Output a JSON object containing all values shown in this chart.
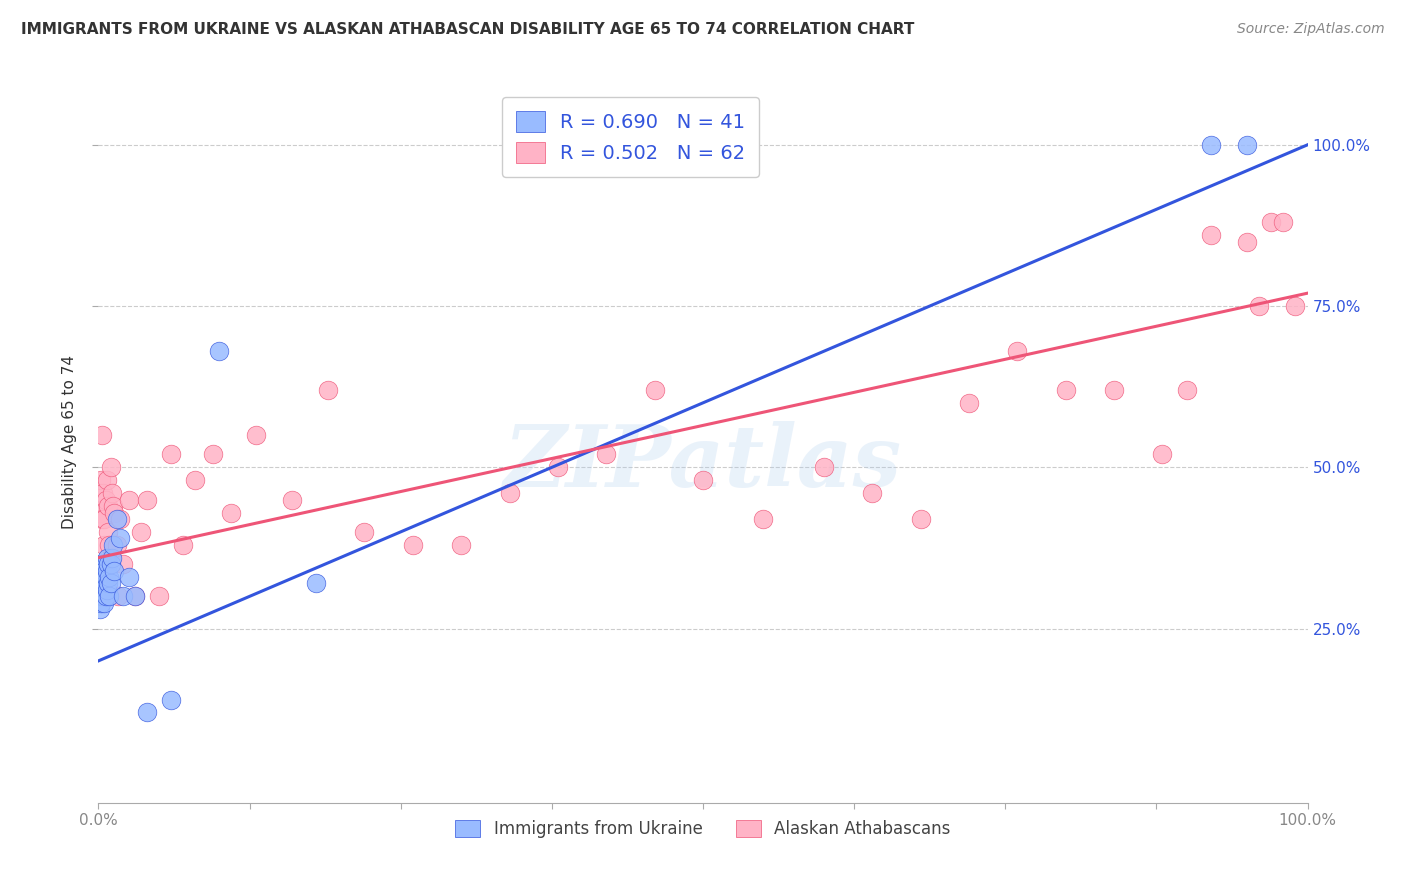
{
  "title": "IMMIGRANTS FROM UKRAINE VS ALASKAN ATHABASCAN DISABILITY AGE 65 TO 74 CORRELATION CHART",
  "source": "Source: ZipAtlas.com",
  "ylabel": "Disability Age 65 to 74",
  "ytick_vals": [
    0.25,
    0.5,
    0.75,
    1.0
  ],
  "ytick_labels": [
    "25.0%",
    "50.0%",
    "75.0%",
    "100.0%"
  ],
  "legend_blue_r": "R = 0.690",
  "legend_blue_n": "N = 41",
  "legend_pink_r": "R = 0.502",
  "legend_pink_n": "N = 62",
  "legend_blue_label": "Immigrants from Ukraine",
  "legend_pink_label": "Alaskan Athabascans",
  "blue_color": "#99BBFF",
  "pink_color": "#FFB3C6",
  "blue_line_color": "#3355DD",
  "pink_line_color": "#EE5577",
  "blue_line_x0": 0.0,
  "blue_line_y0": 0.2,
  "blue_line_x1": 1.0,
  "blue_line_y1": 1.0,
  "pink_line_x0": 0.0,
  "pink_line_y0": 0.36,
  "pink_line_x1": 1.0,
  "pink_line_y1": 0.77,
  "watermark": "ZIPatlas",
  "blue_scatter_x": [
    0.001,
    0.001,
    0.001,
    0.002,
    0.002,
    0.002,
    0.002,
    0.003,
    0.003,
    0.003,
    0.004,
    0.004,
    0.004,
    0.005,
    0.005,
    0.005,
    0.006,
    0.006,
    0.007,
    0.007,
    0.007,
    0.008,
    0.008,
    0.009,
    0.009,
    0.01,
    0.01,
    0.011,
    0.012,
    0.013,
    0.015,
    0.018,
    0.02,
    0.025,
    0.03,
    0.04,
    0.06,
    0.1,
    0.18,
    0.92,
    0.95
  ],
  "blue_scatter_y": [
    0.28,
    0.3,
    0.32,
    0.29,
    0.31,
    0.33,
    0.35,
    0.3,
    0.32,
    0.34,
    0.31,
    0.33,
    0.35,
    0.29,
    0.32,
    0.34,
    0.3,
    0.33,
    0.31,
    0.34,
    0.36,
    0.32,
    0.35,
    0.3,
    0.33,
    0.32,
    0.35,
    0.36,
    0.38,
    0.34,
    0.42,
    0.39,
    0.3,
    0.33,
    0.3,
    0.12,
    0.14,
    0.68,
    0.32,
    1.0,
    1.0
  ],
  "pink_scatter_x": [
    0.001,
    0.001,
    0.002,
    0.002,
    0.003,
    0.003,
    0.004,
    0.004,
    0.005,
    0.005,
    0.006,
    0.006,
    0.007,
    0.008,
    0.008,
    0.009,
    0.01,
    0.01,
    0.011,
    0.012,
    0.013,
    0.015,
    0.016,
    0.018,
    0.02,
    0.025,
    0.03,
    0.035,
    0.04,
    0.05,
    0.06,
    0.07,
    0.08,
    0.095,
    0.11,
    0.13,
    0.16,
    0.19,
    0.22,
    0.26,
    0.3,
    0.34,
    0.38,
    0.42,
    0.46,
    0.5,
    0.55,
    0.6,
    0.64,
    0.68,
    0.72,
    0.76,
    0.8,
    0.84,
    0.88,
    0.9,
    0.92,
    0.95,
    0.96,
    0.97,
    0.98,
    0.99
  ],
  "pink_scatter_y": [
    0.43,
    0.46,
    0.3,
    0.48,
    0.42,
    0.55,
    0.3,
    0.46,
    0.38,
    0.42,
    0.32,
    0.45,
    0.48,
    0.4,
    0.44,
    0.38,
    0.5,
    0.36,
    0.46,
    0.44,
    0.43,
    0.38,
    0.3,
    0.42,
    0.35,
    0.45,
    0.3,
    0.4,
    0.45,
    0.3,
    0.52,
    0.38,
    0.48,
    0.52,
    0.43,
    0.55,
    0.45,
    0.62,
    0.4,
    0.38,
    0.38,
    0.46,
    0.5,
    0.52,
    0.62,
    0.48,
    0.42,
    0.5,
    0.46,
    0.42,
    0.6,
    0.68,
    0.62,
    0.62,
    0.52,
    0.62,
    0.86,
    0.85,
    0.75,
    0.88,
    0.88,
    0.75
  ],
  "xlim": [
    0.0,
    1.0
  ],
  "ylim": [
    -0.02,
    1.1
  ],
  "background_color": "#FFFFFF",
  "grid_color": "#CCCCCC",
  "text_color": "#333333",
  "axis_color": "#888888",
  "legend_text_color": "#3355DD"
}
